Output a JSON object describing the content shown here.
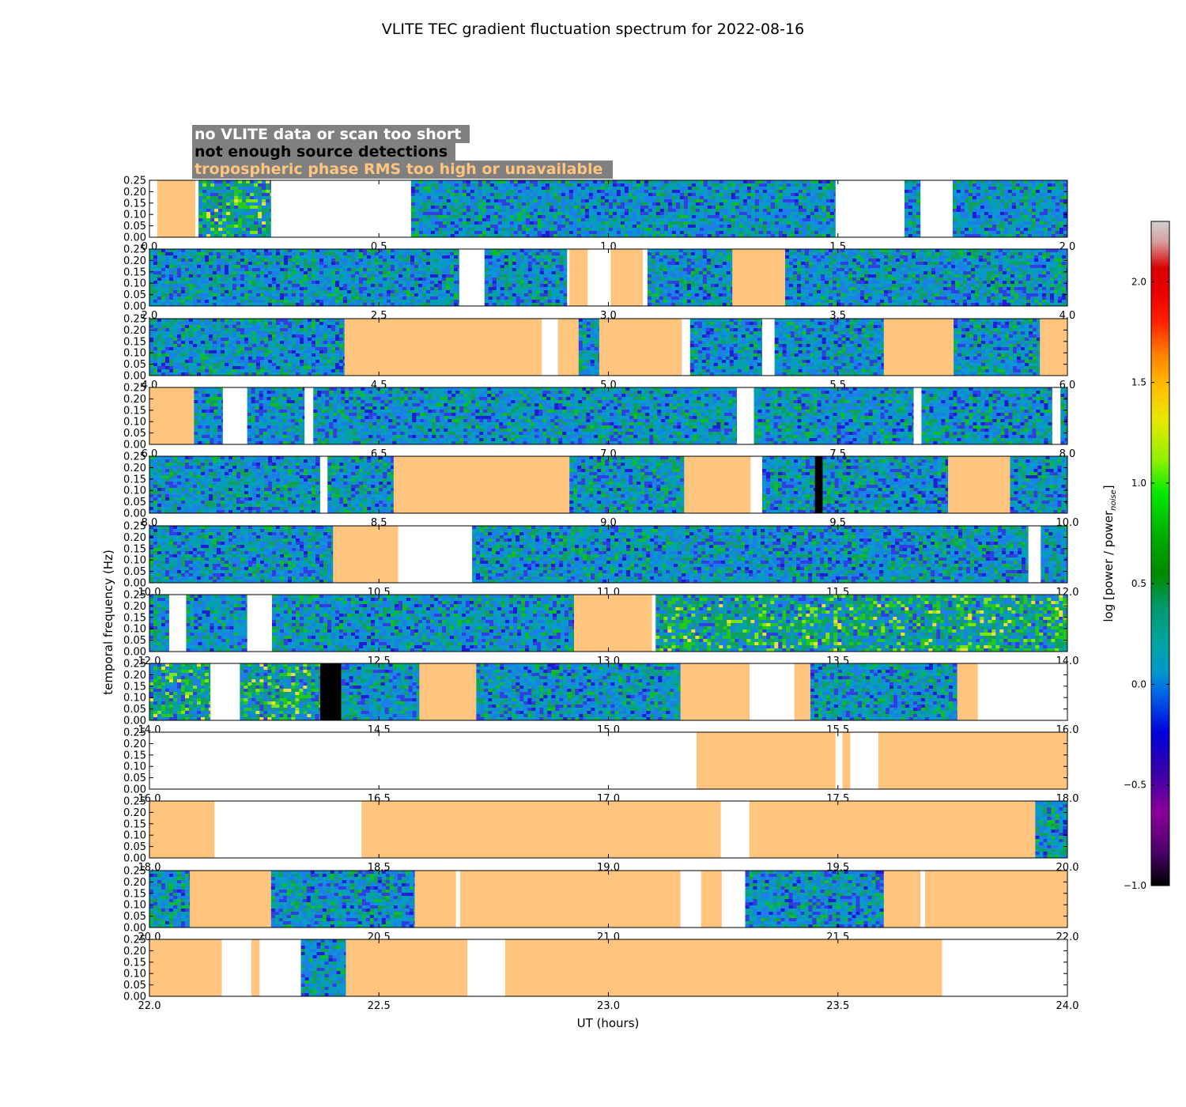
{
  "chart_data": {
    "type": "heatmap",
    "title": "VLITE TEC gradient fluctuation spectrum for 2022-08-16",
    "xlabel": "UT (hours)",
    "ylabel": "temporal frequency (Hz)",
    "ylim": [
      0,
      0.25
    ],
    "yticks": [
      "0.00",
      "0.05",
      "0.10",
      "0.15",
      "0.20",
      "0.25"
    ],
    "colorbar": {
      "label": "log [power / power",
      "label_sub": "noise",
      "label_close": "]",
      "range": [
        -1.0,
        2.3
      ],
      "ticks": [
        "−1.0",
        "−0.5",
        "0.0",
        "0.5",
        "1.0",
        "1.5",
        "2.0"
      ],
      "tick_values": [
        -1.0,
        -0.5,
        0.0,
        0.5,
        1.0,
        1.5,
        2.0
      ]
    },
    "legend": [
      {
        "label": "no VLITE data or scan too short",
        "color": "#ffffff"
      },
      {
        "label": "not enough source detections",
        "color": "#000000"
      },
      {
        "label": "tropospheric phase RMS too high or unavailable",
        "color": "#ffc57e"
      }
    ],
    "colors": {
      "no_data": "#ffffff",
      "few_detections": "#000000",
      "tropo_rms": "#ffc57e",
      "legend_box": "#808080"
    },
    "panels": [
      {
        "range": [
          0,
          2
        ],
        "xticks": [
          "0.0",
          "0.5",
          "1.0",
          "1.5",
          "2.0"
        ],
        "segments": [
          [
            "none",
            0,
            0.017
          ],
          [
            "tropo",
            0.017,
            0.1
          ],
          [
            "none",
            0.1,
            0.107
          ],
          [
            "data",
            0.107,
            0.265,
            "hot"
          ],
          [
            "none",
            0.265,
            0.57
          ],
          [
            "data",
            0.57,
            1.495
          ],
          [
            "none",
            1.495,
            1.645
          ],
          [
            "data",
            1.645,
            1.68
          ],
          [
            "none",
            1.68,
            1.75
          ],
          [
            "data",
            1.75,
            2.0
          ]
        ]
      },
      {
        "range": [
          2,
          4
        ],
        "xticks": [
          "2.0",
          "2.5",
          "3.0",
          "3.5",
          "4.0"
        ],
        "segments": [
          [
            "data",
            2.0,
            2.675
          ],
          [
            "none",
            2.675,
            2.73
          ],
          [
            "data",
            2.73,
            2.91
          ],
          [
            "none",
            2.91,
            2.915
          ],
          [
            "tropo",
            2.915,
            2.955
          ],
          [
            "none",
            2.955,
            3.005
          ],
          [
            "tropo",
            3.005,
            3.075
          ],
          [
            "none",
            3.075,
            3.085
          ],
          [
            "data",
            3.085,
            3.27
          ],
          [
            "tropo",
            3.27,
            3.385
          ],
          [
            "data",
            3.385,
            4.0
          ]
        ]
      },
      {
        "range": [
          4,
          6
        ],
        "xticks": [
          "4.0",
          "4.5",
          "5.0",
          "5.5",
          "6.0"
        ],
        "segments": [
          [
            "data",
            4.0,
            4.425
          ],
          [
            "tropo",
            4.425,
            4.855
          ],
          [
            "none",
            4.855,
            4.89
          ],
          [
            "tropo",
            4.89,
            4.935
          ],
          [
            "data",
            4.935,
            4.98
          ],
          [
            "tropo",
            4.98,
            5.16
          ],
          [
            "none",
            5.16,
            5.178
          ],
          [
            "data",
            5.178,
            5.335
          ],
          [
            "none",
            5.335,
            5.362
          ],
          [
            "data",
            5.362,
            5.6
          ],
          [
            "tropo",
            5.6,
            5.752
          ],
          [
            "data",
            5.752,
            5.94
          ],
          [
            "tropo",
            5.94,
            6.0
          ]
        ]
      },
      {
        "range": [
          6,
          8
        ],
        "xticks": [
          "6.0",
          "6.5",
          "7.0",
          "7.5",
          "8.0"
        ],
        "segments": [
          [
            "tropo",
            6.0,
            6.097
          ],
          [
            "data",
            6.097,
            6.16
          ],
          [
            "none",
            6.16,
            6.213
          ],
          [
            "data",
            6.213,
            6.338
          ],
          [
            "none",
            6.338,
            6.357
          ],
          [
            "data",
            6.357,
            7.28
          ],
          [
            "none",
            7.28,
            7.317
          ],
          [
            "data",
            7.317,
            7.665
          ],
          [
            "none",
            7.665,
            7.682
          ],
          [
            "data",
            7.682,
            7.967
          ],
          [
            "none",
            7.967,
            7.985
          ],
          [
            "data",
            7.985,
            8.0
          ]
        ]
      },
      {
        "range": [
          8,
          10
        ],
        "xticks": [
          "8.0",
          "8.5",
          "9.0",
          "9.5",
          "10.0"
        ],
        "segments": [
          [
            "data",
            8.0,
            8.372
          ],
          [
            "none",
            8.372,
            8.388
          ],
          [
            "data",
            8.388,
            8.532
          ],
          [
            "tropo",
            8.532,
            8.915
          ],
          [
            "data",
            8.915,
            9.165
          ],
          [
            "tropo",
            9.165,
            9.31
          ],
          [
            "none",
            9.31,
            9.335
          ],
          [
            "data",
            9.335,
            9.45
          ],
          [
            "black",
            9.45,
            9.467
          ],
          [
            "data",
            9.467,
            9.74
          ],
          [
            "tropo",
            9.74,
            9.875
          ],
          [
            "data",
            9.875,
            10.0
          ]
        ]
      },
      {
        "range": [
          10,
          12
        ],
        "xticks": [
          "10.0",
          "10.5",
          "11.0",
          "11.5",
          "12.0"
        ],
        "segments": [
          [
            "data",
            10.0,
            10.4
          ],
          [
            "tropo",
            10.4,
            10.542
          ],
          [
            "none",
            10.542,
            10.703
          ],
          [
            "data",
            10.703,
            11.915
          ],
          [
            "none",
            11.915,
            11.942
          ],
          [
            "data",
            11.942,
            12.0
          ]
        ]
      },
      {
        "range": [
          12,
          14
        ],
        "xticks": [
          "12.0",
          "12.5",
          "13.0",
          "13.5",
          "14.0"
        ],
        "segments": [
          [
            "data",
            12.0,
            12.043
          ],
          [
            "none",
            12.043,
            12.08
          ],
          [
            "data",
            12.08,
            12.213
          ],
          [
            "none",
            12.213,
            12.267
          ],
          [
            "data",
            12.267,
            12.925
          ],
          [
            "tropo",
            12.925,
            13.095
          ],
          [
            "none",
            13.095,
            13.103
          ],
          [
            "data",
            13.103,
            14.0,
            "hot"
          ]
        ]
      },
      {
        "range": [
          14,
          16
        ],
        "xticks": [
          "14.0",
          "14.5",
          "15.0",
          "15.5",
          "16.0"
        ],
        "segments": [
          [
            "data",
            14.0,
            14.133,
            "hot"
          ],
          [
            "none",
            14.133,
            14.197
          ],
          [
            "data",
            14.197,
            14.372,
            "hot"
          ],
          [
            "black",
            14.372,
            14.418
          ],
          [
            "data",
            14.418,
            14.588
          ],
          [
            "tropo",
            14.588,
            14.712
          ],
          [
            "data",
            14.712,
            15.157
          ],
          [
            "tropo",
            15.157,
            15.308
          ],
          [
            "none",
            15.308,
            15.405
          ],
          [
            "tropo",
            15.405,
            15.44
          ],
          [
            "data",
            15.44,
            15.76
          ],
          [
            "tropo",
            15.76,
            15.805
          ],
          [
            "none",
            15.805,
            16.0
          ]
        ]
      },
      {
        "range": [
          16,
          18
        ],
        "xticks": [
          "16.0",
          "16.5",
          "17.0",
          "17.5",
          "18.0"
        ],
        "segments": [
          [
            "none",
            16.0,
            17.192
          ],
          [
            "tropo",
            17.192,
            17.495
          ],
          [
            "none",
            17.495,
            17.51
          ],
          [
            "tropo",
            17.51,
            17.527
          ],
          [
            "none",
            17.527,
            17.588
          ],
          [
            "tropo",
            17.588,
            18.0
          ]
        ]
      },
      {
        "range": [
          18,
          20
        ],
        "xticks": [
          "18.0",
          "18.5",
          "19.0",
          "19.5",
          "20.0"
        ],
        "segments": [
          [
            "tropo",
            18.0,
            18.142
          ],
          [
            "none",
            18.142,
            18.462
          ],
          [
            "tropo",
            18.462,
            19.245
          ],
          [
            "none",
            19.245,
            19.307
          ],
          [
            "tropo",
            19.307,
            19.93
          ],
          [
            "data",
            19.93,
            20.0
          ]
        ]
      },
      {
        "range": [
          20,
          22
        ],
        "xticks": [
          "20.0",
          "20.5",
          "21.0",
          "21.5",
          "22.0"
        ],
        "segments": [
          [
            "data",
            20.0,
            20.088
          ],
          [
            "tropo",
            20.088,
            20.265
          ],
          [
            "data",
            20.265,
            20.578
          ],
          [
            "tropo",
            20.578,
            20.668
          ],
          [
            "none",
            20.668,
            20.677
          ],
          [
            "tropo",
            20.677,
            21.157
          ],
          [
            "none",
            21.157,
            21.202
          ],
          [
            "tropo",
            21.202,
            21.247
          ],
          [
            "none",
            21.247,
            21.298
          ],
          [
            "data",
            21.298,
            21.6
          ],
          [
            "tropo",
            21.6,
            21.68
          ],
          [
            "none",
            21.68,
            21.69
          ],
          [
            "tropo",
            21.69,
            22.0
          ]
        ]
      },
      {
        "range": [
          22,
          24
        ],
        "xticks": [
          "22.0",
          "22.5",
          "23.0",
          "23.5",
          "24.0"
        ],
        "segments": [
          [
            "tropo",
            22.0,
            22.158
          ],
          [
            "none",
            22.158,
            22.222
          ],
          [
            "tropo",
            22.222,
            22.24
          ],
          [
            "none",
            22.24,
            22.33
          ],
          [
            "data",
            22.33,
            22.428
          ],
          [
            "tropo",
            22.428,
            22.693
          ],
          [
            "none",
            22.693,
            22.775
          ],
          [
            "tropo",
            22.775,
            23.727
          ],
          [
            "none",
            23.727,
            24.0
          ]
        ]
      }
    ]
  }
}
